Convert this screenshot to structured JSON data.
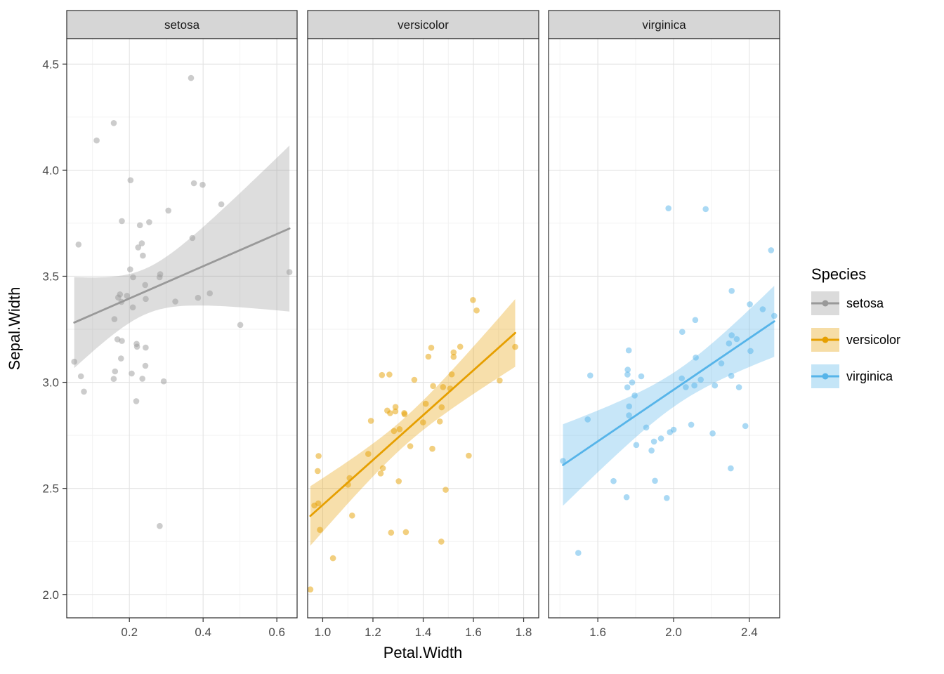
{
  "chart_data": {
    "type": "scatter",
    "title": "",
    "xlabel": "Petal.Width",
    "ylabel": "Sepal.Width",
    "ylim": [
      1.89,
      4.62
    ],
    "y_ticks": [
      2.0,
      2.5,
      3.0,
      3.5,
      4.0,
      4.5
    ],
    "grid": true,
    "smooth": "linear-regression-with-95pct-ci-ribbon",
    "jitter": 0.05,
    "point_alpha": 0.5,
    "legend": {
      "title": "Species",
      "position": "right",
      "entries": [
        {
          "label": "setosa",
          "color": "#999999"
        },
        {
          "label": "versicolor",
          "color": "#E69F00"
        },
        {
          "label": "virginica",
          "color": "#56B4E9"
        }
      ]
    },
    "facets": [
      {
        "label": "setosa",
        "color": "#999999",
        "xlim": [
          0.03,
          0.655
        ],
        "x_ticks": [
          0.2,
          0.4,
          0.6
        ],
        "points": [
          [
            0.2,
            3.5
          ],
          [
            0.2,
            3.0
          ],
          [
            0.2,
            3.2
          ],
          [
            0.2,
            3.1
          ],
          [
            0.2,
            3.6
          ],
          [
            0.4,
            3.9
          ],
          [
            0.3,
            3.4
          ],
          [
            0.2,
            3.4
          ],
          [
            0.2,
            2.9
          ],
          [
            0.1,
            3.1
          ],
          [
            0.2,
            3.7
          ],
          [
            0.2,
            3.4
          ],
          [
            0.1,
            3.0
          ],
          [
            0.1,
            3.0
          ],
          [
            0.2,
            4.0
          ],
          [
            0.4,
            4.4
          ],
          [
            0.4,
            3.9
          ],
          [
            0.3,
            3.5
          ],
          [
            0.3,
            3.8
          ],
          [
            0.3,
            3.8
          ],
          [
            0.2,
            3.4
          ],
          [
            0.4,
            3.7
          ],
          [
            0.2,
            3.6
          ],
          [
            0.5,
            3.3
          ],
          [
            0.2,
            3.4
          ],
          [
            0.2,
            3.0
          ],
          [
            0.4,
            3.4
          ],
          [
            0.2,
            3.5
          ],
          [
            0.2,
            3.4
          ],
          [
            0.2,
            3.2
          ],
          [
            0.2,
            3.1
          ],
          [
            0.4,
            3.4
          ],
          [
            0.1,
            4.1
          ],
          [
            0.2,
            4.2
          ],
          [
            0.2,
            3.1
          ],
          [
            0.2,
            3.2
          ],
          [
            0.2,
            3.5
          ],
          [
            0.1,
            3.6
          ],
          [
            0.2,
            3.0
          ],
          [
            0.2,
            3.4
          ],
          [
            0.3,
            3.5
          ],
          [
            0.3,
            2.3
          ],
          [
            0.2,
            3.2
          ],
          [
            0.6,
            3.5
          ],
          [
            0.4,
            3.8
          ],
          [
            0.3,
            3.0
          ],
          [
            0.2,
            3.8
          ],
          [
            0.2,
            3.2
          ],
          [
            0.2,
            3.7
          ],
          [
            0.2,
            3.3
          ]
        ]
      },
      {
        "label": "versicolor",
        "color": "#E69F00",
        "xlim": [
          0.94,
          1.86
        ],
        "x_ticks": [
          1.0,
          1.2,
          1.4,
          1.6,
          1.8
        ],
        "points": [
          [
            1.4,
            3.2
          ],
          [
            1.5,
            3.2
          ],
          [
            1.5,
            3.1
          ],
          [
            1.3,
            2.3
          ],
          [
            1.5,
            2.8
          ],
          [
            1.3,
            2.8
          ],
          [
            1.6,
            3.3
          ],
          [
            1.0,
            2.4
          ],
          [
            1.3,
            2.9
          ],
          [
            1.4,
            2.7
          ],
          [
            1.0,
            2.0
          ],
          [
            1.5,
            3.0
          ],
          [
            1.0,
            2.2
          ],
          [
            1.4,
            2.9
          ],
          [
            1.3,
            2.9
          ],
          [
            1.4,
            3.1
          ],
          [
            1.5,
            3.0
          ],
          [
            1.0,
            2.7
          ],
          [
            1.5,
            2.2
          ],
          [
            1.1,
            2.5
          ],
          [
            1.8,
            3.2
          ],
          [
            1.3,
            2.8
          ],
          [
            1.5,
            2.5
          ],
          [
            1.2,
            2.8
          ],
          [
            1.3,
            2.9
          ],
          [
            1.4,
            3.0
          ],
          [
            1.4,
            2.8
          ],
          [
            1.7,
            3.0
          ],
          [
            1.5,
            2.9
          ],
          [
            1.0,
            2.6
          ],
          [
            1.1,
            2.4
          ],
          [
            1.0,
            2.4
          ],
          [
            1.2,
            2.7
          ],
          [
            1.6,
            2.7
          ],
          [
            1.5,
            3.0
          ],
          [
            1.6,
            3.4
          ],
          [
            1.5,
            3.1
          ],
          [
            1.3,
            2.3
          ],
          [
            1.3,
            3.0
          ],
          [
            1.3,
            2.5
          ],
          [
            1.2,
            2.6
          ],
          [
            1.4,
            3.0
          ],
          [
            1.2,
            2.6
          ],
          [
            1.0,
            2.3
          ],
          [
            1.3,
            2.7
          ],
          [
            1.2,
            3.0
          ],
          [
            1.3,
            2.9
          ],
          [
            1.3,
            2.9
          ],
          [
            1.1,
            2.5
          ],
          [
            1.3,
            2.8
          ]
        ]
      },
      {
        "label": "virginica",
        "color": "#56B4E9",
        "xlim": [
          1.34,
          2.56
        ],
        "x_ticks": [
          1.6,
          2.0,
          2.4
        ],
        "points": [
          [
            2.5,
            3.3
          ],
          [
            1.9,
            2.7
          ],
          [
            2.1,
            3.0
          ],
          [
            1.8,
            2.9
          ],
          [
            2.2,
            3.0
          ],
          [
            2.1,
            3.0
          ],
          [
            1.7,
            2.5
          ],
          [
            1.8,
            2.9
          ],
          [
            1.8,
            2.5
          ],
          [
            2.5,
            3.6
          ],
          [
            2.0,
            3.2
          ],
          [
            1.9,
            2.7
          ],
          [
            2.1,
            3.0
          ],
          [
            2.0,
            2.5
          ],
          [
            2.4,
            2.8
          ],
          [
            2.3,
            3.2
          ],
          [
            1.8,
            3.0
          ],
          [
            2.2,
            3.8
          ],
          [
            2.3,
            2.6
          ],
          [
            1.5,
            2.2
          ],
          [
            2.3,
            3.2
          ],
          [
            2.0,
            2.8
          ],
          [
            2.0,
            2.8
          ],
          [
            1.8,
            2.7
          ],
          [
            2.1,
            3.3
          ],
          [
            1.8,
            3.2
          ],
          [
            1.8,
            2.8
          ],
          [
            1.8,
            3.0
          ],
          [
            2.1,
            2.8
          ],
          [
            1.6,
            3.0
          ],
          [
            1.9,
            2.8
          ],
          [
            2.0,
            3.8
          ],
          [
            2.2,
            2.8
          ],
          [
            1.5,
            2.8
          ],
          [
            1.4,
            2.6
          ],
          [
            2.3,
            3.0
          ],
          [
            2.4,
            3.4
          ],
          [
            1.8,
            3.1
          ],
          [
            1.8,
            3.0
          ],
          [
            2.1,
            3.1
          ],
          [
            2.4,
            3.1
          ],
          [
            2.3,
            3.1
          ],
          [
            1.9,
            2.7
          ],
          [
            2.3,
            3.2
          ],
          [
            2.5,
            3.3
          ],
          [
            2.3,
            3.0
          ],
          [
            1.9,
            2.5
          ],
          [
            2.0,
            3.0
          ],
          [
            2.3,
            3.4
          ],
          [
            1.8,
            3.0
          ]
        ]
      }
    ]
  }
}
